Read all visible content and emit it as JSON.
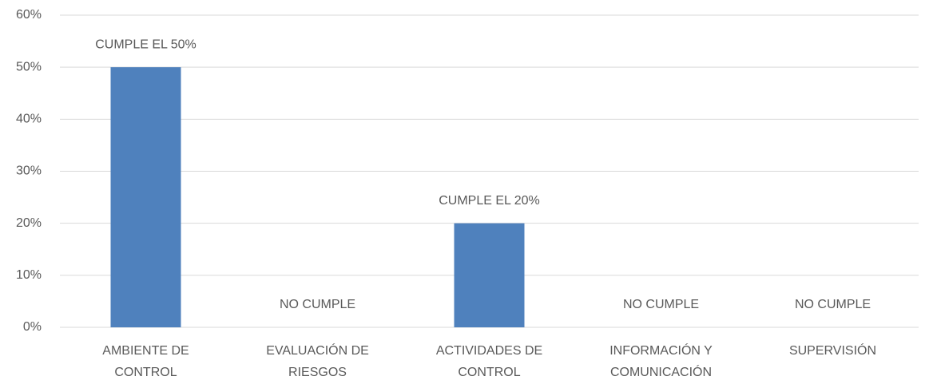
{
  "chart_data": {
    "type": "bar",
    "categories": [
      "AMBIENTE DE CONTROL",
      "EVALUACIÓN DE RIESGOS",
      "ACTIVIDADES DE CONTROL",
      "INFORMACIÓN Y COMUNICACIÓN",
      "SUPERVISIÓN"
    ],
    "values": [
      50,
      0,
      20,
      0,
      0
    ],
    "value_labels": [
      "CUMPLE EL 50%",
      "NO CUMPLE",
      "CUMPLE EL 20%",
      "NO CUMPLE",
      "NO CUMPLE"
    ],
    "color": "#4f81bd",
    "ylim": [
      0,
      60
    ],
    "yticks": [
      {
        "value": 0,
        "label": "0%"
      },
      {
        "value": 10,
        "label": "10%"
      },
      {
        "value": 20,
        "label": "20%"
      },
      {
        "value": 30,
        "label": "30%"
      },
      {
        "value": 40,
        "label": "40%"
      },
      {
        "value": 50,
        "label": "50%"
      },
      {
        "value": 60,
        "label": "60%"
      }
    ],
    "grid": true
  }
}
